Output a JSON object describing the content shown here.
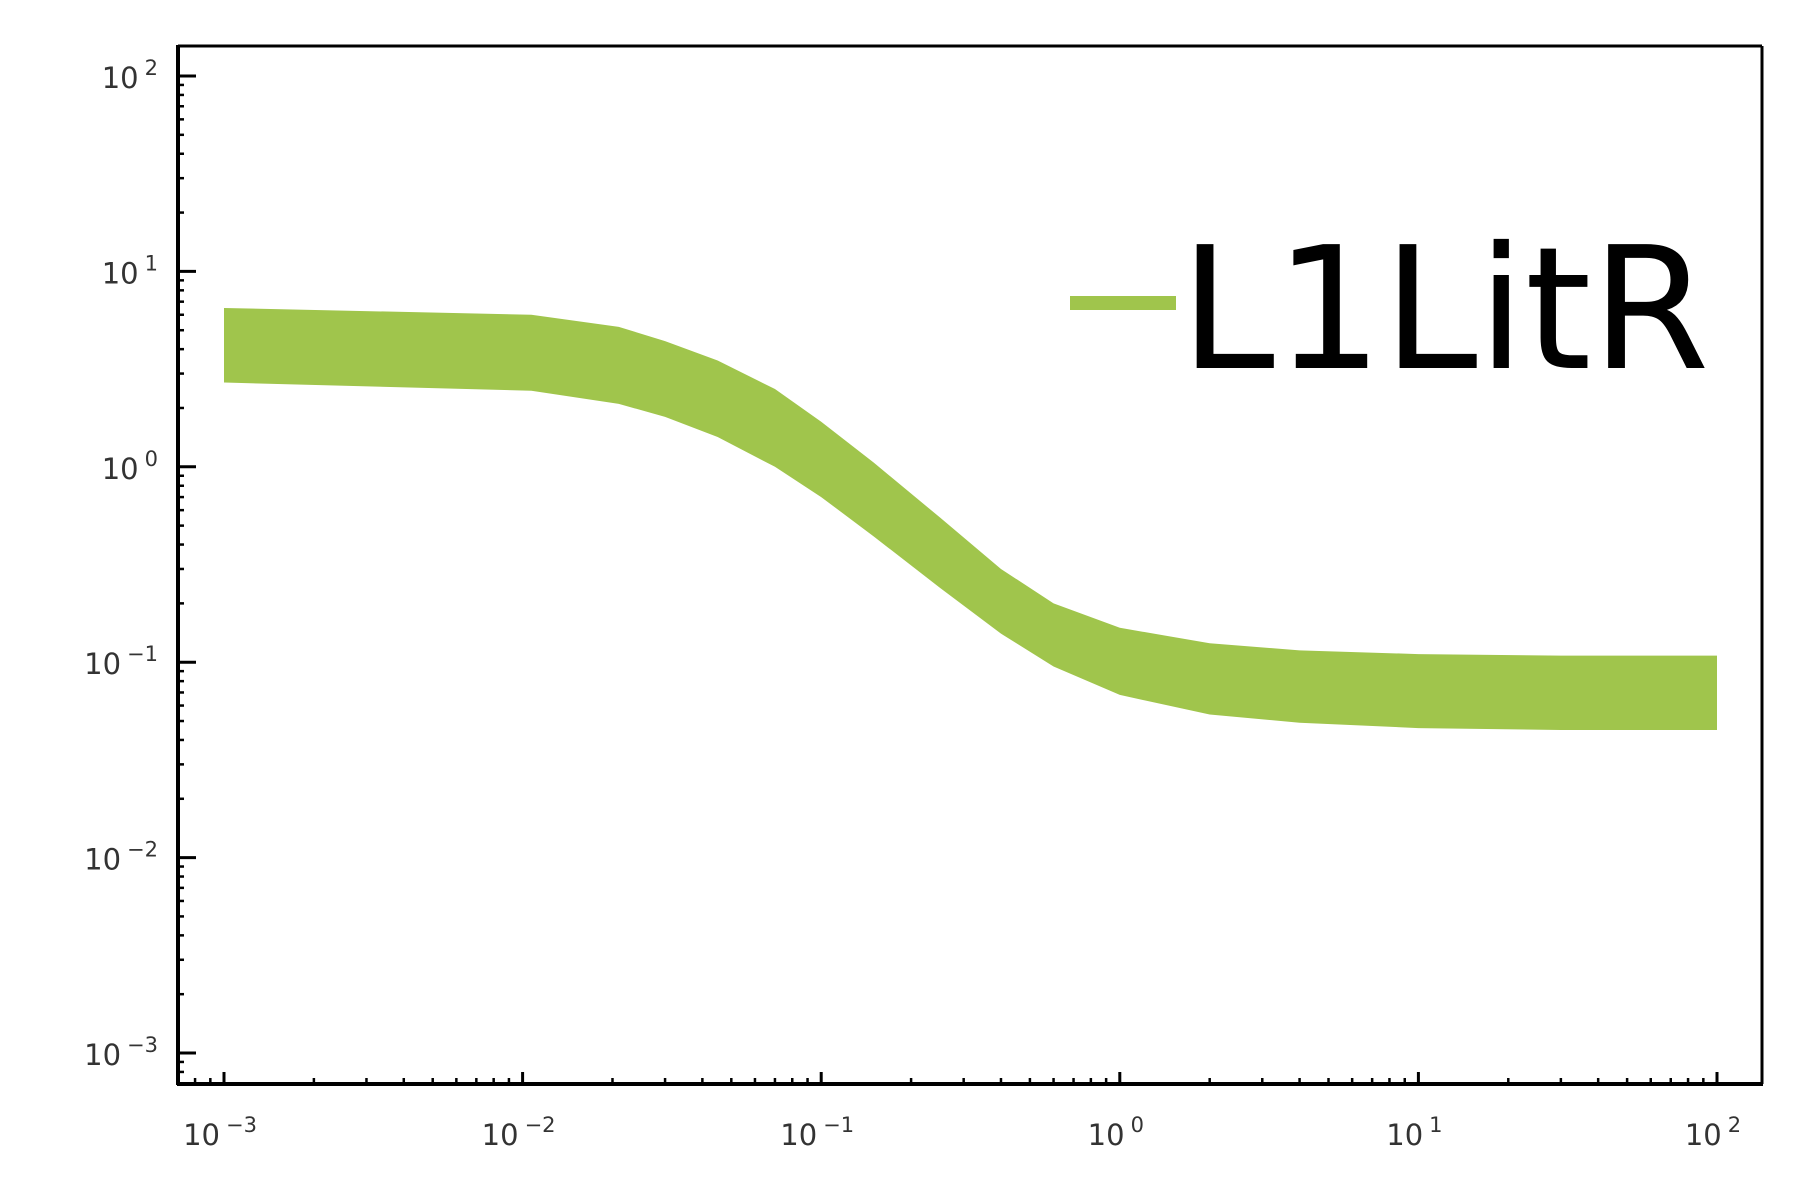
{
  "chart_data": {
    "type": "line",
    "x_scale": "log",
    "y_scale": "log",
    "xlim": [
      0.001,
      100
    ],
    "ylim": [
      0.001,
      100
    ],
    "x_ticks": [
      {
        "value": 0.001,
        "base": "10",
        "exp": "−3"
      },
      {
        "value": 0.01,
        "base": "10",
        "exp": "−2"
      },
      {
        "value": 0.1,
        "base": "10",
        "exp": "−1"
      },
      {
        "value": 1,
        "base": "10",
        "exp": "0"
      },
      {
        "value": 10,
        "base": "10",
        "exp": "1"
      },
      {
        "value": 100,
        "base": "10",
        "exp": "2"
      }
    ],
    "y_ticks": [
      {
        "value": 0.001,
        "base": "10",
        "exp": "−3"
      },
      {
        "value": 0.01,
        "base": "10",
        "exp": "−2"
      },
      {
        "value": 0.1,
        "base": "10",
        "exp": "−1"
      },
      {
        "value": 1,
        "base": "10",
        "exp": "0"
      },
      {
        "value": 10,
        "base": "10",
        "exp": "1"
      },
      {
        "value": 100,
        "base": "10",
        "exp": "2"
      }
    ],
    "grid": false,
    "legend_position": "top-right",
    "series": [
      {
        "name": "L1LitR",
        "color": "#a0c54c",
        "style": "band",
        "x": [
          0.001,
          0.0107,
          0.021,
          0.03,
          0.045,
          0.07,
          0.1,
          0.15,
          0.25,
          0.4,
          0.6,
          1,
          2,
          4,
          10,
          30,
          100
        ],
        "upper": [
          6.5,
          6.0,
          5.2,
          4.4,
          3.5,
          2.5,
          1.7,
          1.05,
          0.55,
          0.3,
          0.2,
          0.15,
          0.125,
          0.115,
          0.11,
          0.108,
          0.108
        ],
        "lower": [
          2.7,
          2.45,
          2.1,
          1.8,
          1.42,
          1.0,
          0.7,
          0.44,
          0.24,
          0.14,
          0.095,
          0.068,
          0.054,
          0.049,
          0.046,
          0.045,
          0.045
        ]
      }
    ]
  }
}
